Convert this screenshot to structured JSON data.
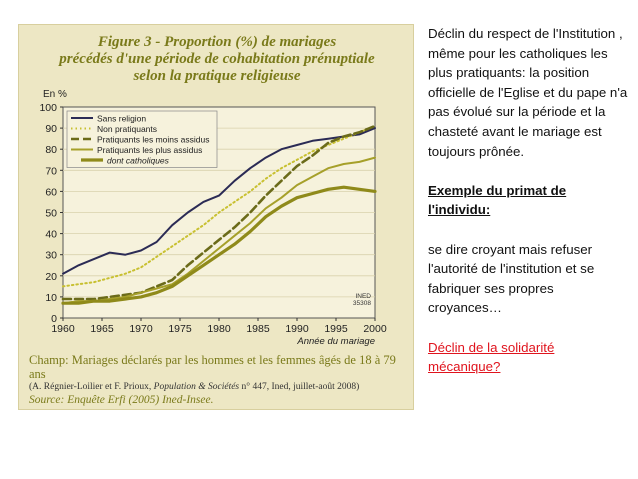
{
  "figure": {
    "title_line1": "Figure 3 - Proportion (%) de mariages",
    "title_line2": "précédés d'une période de cohabitation prénuptiale",
    "title_line3": "selon la pratique religieuse",
    "champ": "Champ: Mariages déclarés par les hommes et les femmes âgés de 18 à 79 ans",
    "reference_prefix": "(A. Régnier-Loilier et F. Prioux, ",
    "reference_italic": "Population & Sociétés",
    "reference_suffix": " n° 447, Ined, juillet-août 2008)",
    "source": "Source: Enquête Erfi (2005) Ined-Insee.",
    "watermark_line1": "INED",
    "watermark_line2": "35308"
  },
  "chart_data": {
    "type": "line",
    "ylabel": "En %",
    "xlabel": "Année du mariage",
    "xlim": [
      1960,
      2000
    ],
    "ylim": [
      0,
      100
    ],
    "x_ticks": [
      1960,
      1965,
      1970,
      1975,
      1980,
      1985,
      1990,
      1995,
      2000
    ],
    "y_ticks": [
      0,
      10,
      20,
      30,
      40,
      50,
      60,
      70,
      80,
      90,
      100
    ],
    "legend_position": "top-left",
    "series": [
      {
        "name": "Sans religion",
        "color": "#2b2b55",
        "style": "solid",
        "x": [
          1960,
          1962,
          1964,
          1966,
          1968,
          1970,
          1972,
          1974,
          1976,
          1978,
          1980,
          1982,
          1984,
          1986,
          1988,
          1990,
          1992,
          1994,
          1996,
          1998,
          2000
        ],
        "values": [
          21,
          25,
          28,
          31,
          30,
          32,
          36,
          44,
          50,
          55,
          58,
          65,
          71,
          76,
          80,
          82,
          84,
          85,
          86,
          87,
          90
        ]
      },
      {
        "name": "Non pratiquants",
        "color": "#c8c030",
        "style": "dotted",
        "x": [
          1960,
          1962,
          1964,
          1966,
          1968,
          1970,
          1972,
          1974,
          1976,
          1978,
          1980,
          1982,
          1984,
          1986,
          1988,
          1990,
          1992,
          1994,
          1996,
          1998,
          2000
        ],
        "values": [
          15,
          16,
          17,
          19,
          21,
          24,
          29,
          34,
          39,
          44,
          50,
          55,
          60,
          66,
          71,
          75,
          79,
          82,
          85,
          88,
          91
        ]
      },
      {
        "name": "Pratiquants les moins assidus",
        "color": "#6b6b1a",
        "style": "dashed",
        "x": [
          1960,
          1962,
          1964,
          1966,
          1968,
          1970,
          1972,
          1974,
          1976,
          1978,
          1980,
          1982,
          1984,
          1986,
          1988,
          1990,
          1992,
          1994,
          1996,
          1998,
          2000
        ],
        "values": [
          9,
          9,
          9,
          10,
          11,
          12,
          15,
          18,
          25,
          31,
          37,
          43,
          50,
          58,
          65,
          72,
          77,
          83,
          86,
          88,
          91
        ]
      },
      {
        "name": "Pratiquants les plus assidus",
        "color": "#a6a02a",
        "style": "solid",
        "x": [
          1960,
          1962,
          1964,
          1966,
          1968,
          1970,
          1972,
          1974,
          1976,
          1978,
          1980,
          1982,
          1984,
          1986,
          1988,
          1990,
          1992,
          1994,
          1996,
          1998,
          2000
        ],
        "values": [
          7,
          8,
          8,
          9,
          10,
          12,
          14,
          16,
          21,
          27,
          33,
          39,
          45,
          52,
          57,
          63,
          67,
          71,
          73,
          74,
          76
        ]
      },
      {
        "name": "dont catholiques",
        "color": "#8f8a1a",
        "style": "solid-thick",
        "x": [
          1960,
          1962,
          1964,
          1966,
          1968,
          1970,
          1972,
          1974,
          1976,
          1978,
          1980,
          1982,
          1984,
          1986,
          1988,
          1990,
          1992,
          1994,
          1996,
          1998,
          2000
        ],
        "values": [
          7,
          7,
          8,
          8,
          9,
          10,
          12,
          15,
          20,
          25,
          30,
          35,
          41,
          48,
          53,
          57,
          59,
          61,
          62,
          61,
          60
        ]
      }
    ]
  },
  "side_text": {
    "para1": "Déclin du respect de l'Institution , même pour les catholiques les plus pratiquants: la position officielle de l'Eglise et du pape n'a pas évolué sur la période et la chasteté avant le mariage est toujours prônée.",
    "heading": "Exemple du primat de l'individu:",
    "para2": "se dire croyant mais refuser l'autorité de l'institution et se fabriquer ses propres croyances…",
    "red_link": "Déclin de la solidarité mécanique?"
  }
}
